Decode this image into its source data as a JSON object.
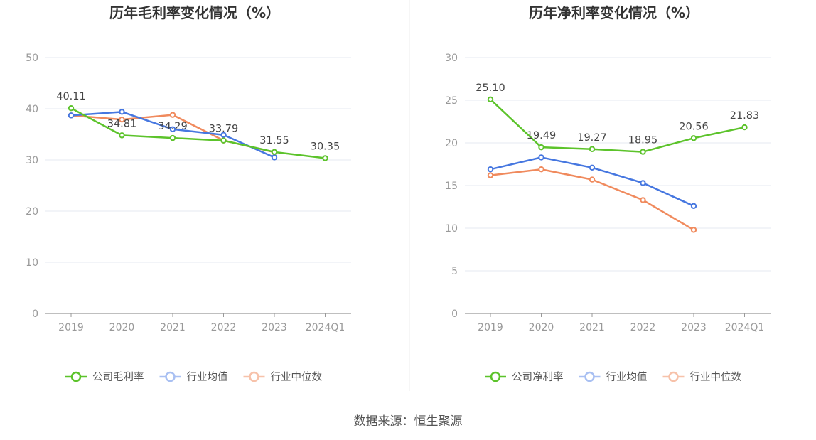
{
  "source_text": "数据来源：恒生聚源",
  "colors": {
    "company": "#5cc32b",
    "avg": "#4677e0",
    "median": "#f08a5d",
    "grid": "#e6e9f2",
    "axis": "#999999"
  },
  "chart_data": [
    {
      "type": "line",
      "title": "历年毛利率变化情况（%）",
      "categories": [
        "2019",
        "2020",
        "2021",
        "2022",
        "2023",
        "2024Q1"
      ],
      "ylim": [
        0,
        50
      ],
      "yticks": [
        0,
        10,
        20,
        30,
        40,
        50
      ],
      "series": [
        {
          "name": "公司毛利率",
          "key": "company",
          "values": [
            40.11,
            34.81,
            34.29,
            33.79,
            31.55,
            30.35
          ],
          "labels": [
            "40.11",
            "34.81",
            "34.29",
            "33.79",
            "31.55",
            "30.35"
          ]
        },
        {
          "name": "行业均值",
          "key": "avg",
          "values": [
            38.7,
            39.4,
            36.0,
            34.9,
            30.5,
            null
          ]
        },
        {
          "name": "行业中位数",
          "key": "median",
          "values": [
            38.7,
            37.9,
            38.8,
            33.8,
            31.5,
            null
          ]
        }
      ],
      "legend": [
        "公司毛利率",
        "行业均值",
        "行业中位数"
      ]
    },
    {
      "type": "line",
      "title": "历年净利率变化情况（%）",
      "categories": [
        "2019",
        "2020",
        "2021",
        "2022",
        "2023",
        "2024Q1"
      ],
      "ylim": [
        0,
        30
      ],
      "yticks": [
        0,
        5,
        10,
        15,
        20,
        25,
        30
      ],
      "series": [
        {
          "name": "公司净利率",
          "key": "company",
          "values": [
            25.1,
            19.49,
            19.27,
            18.95,
            20.56,
            21.83
          ],
          "labels": [
            "25.10",
            "19.49",
            "19.27",
            "18.95",
            "20.56",
            "21.83"
          ]
        },
        {
          "name": "行业均值",
          "key": "avg",
          "values": [
            16.9,
            18.3,
            17.1,
            15.3,
            12.6,
            null
          ]
        },
        {
          "name": "行业中位数",
          "key": "median",
          "values": [
            16.2,
            16.9,
            15.7,
            13.3,
            9.8,
            null
          ]
        }
      ],
      "legend": [
        "公司净利率",
        "行业均值",
        "行业中位数"
      ]
    }
  ]
}
